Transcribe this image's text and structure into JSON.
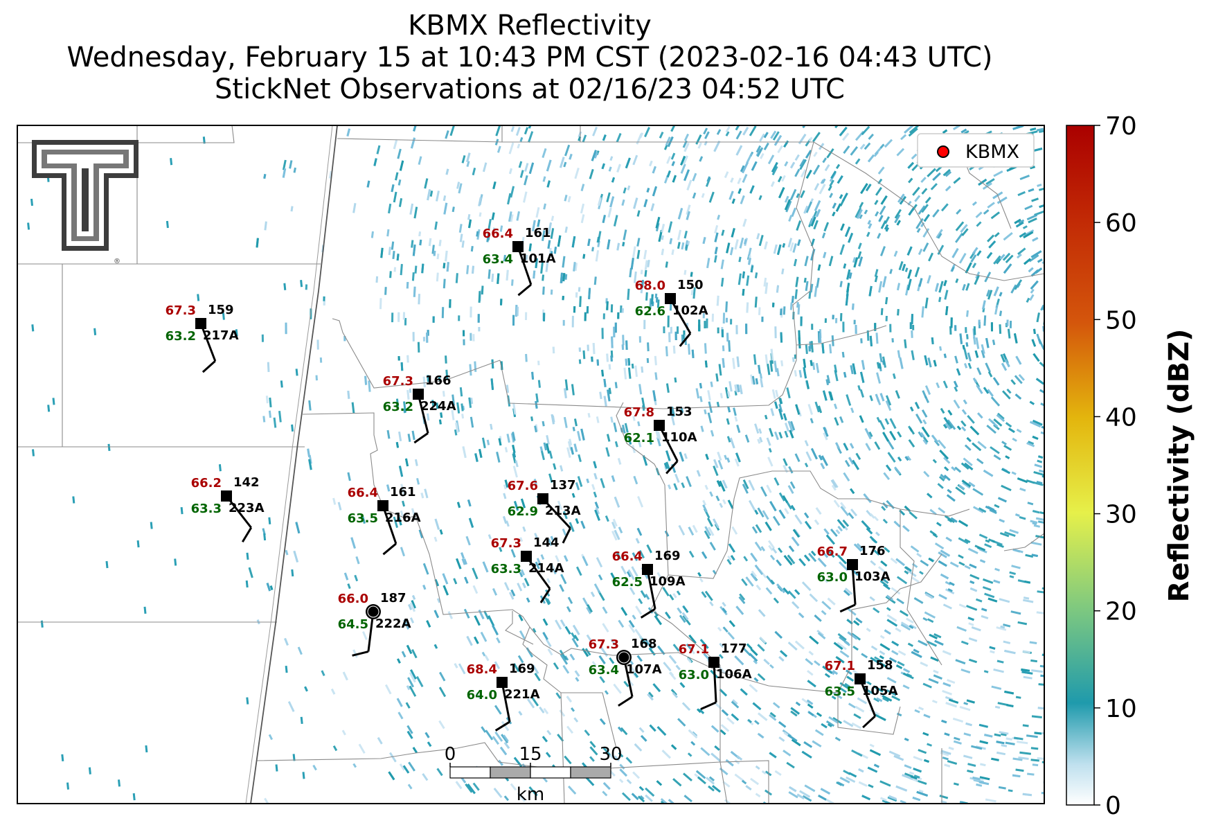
{
  "title": {
    "line1": "KBMX Reflectivity",
    "line2": "Wednesday, February 15 at 10:43 PM CST (2023-02-16 04:43 UTC)",
    "line3": "StickNet Observations at 02/16/23 04:52 UTC"
  },
  "legend": {
    "label": "KBMX",
    "marker_color": "#ff0000"
  },
  "colorbar": {
    "label": "Reflectivity (dBZ)",
    "ticks": [
      "0",
      "10",
      "20",
      "30",
      "40",
      "50",
      "60",
      "70"
    ],
    "range": [
      0,
      70
    ],
    "colors": [
      "#ffffff",
      "#1f9aac",
      "#7fc97f",
      "#e6f04a",
      "#e3b50d",
      "#d4560c",
      "#aa0000"
    ]
  },
  "scalebar": {
    "ticks": [
      "0",
      "15",
      "30"
    ],
    "unit": "km"
  },
  "logo": {
    "name": "texas-tech-double-t-logo"
  },
  "stations": [
    {
      "id": "101A",
      "temp": "66.4",
      "dew": "63.4",
      "dir": "161",
      "marker": "square"
    },
    {
      "id": "102A",
      "temp": "68.0",
      "dew": "62.6",
      "dir": "150",
      "marker": "square"
    },
    {
      "id": "217A",
      "temp": "67.3",
      "dew": "63.2",
      "dir": "159",
      "marker": "square"
    },
    {
      "id": "224A",
      "temp": "67.3",
      "dew": "63.2",
      "dir": "166",
      "marker": "square"
    },
    {
      "id": "110A",
      "temp": "67.8",
      "dew": "62.1",
      "dir": "153",
      "marker": "square"
    },
    {
      "id": "223A",
      "temp": "66.2",
      "dew": "63.3",
      "dir": "142",
      "marker": "square"
    },
    {
      "id": "216A",
      "temp": "66.4",
      "dew": "63.5",
      "dir": "161",
      "marker": "square"
    },
    {
      "id": "213A",
      "temp": "67.6",
      "dew": "62.9",
      "dir": "137",
      "marker": "square"
    },
    {
      "id": "214A",
      "temp": "67.3",
      "dew": "63.3",
      "dir": "144",
      "marker": "square"
    },
    {
      "id": "109A",
      "temp": "66.4",
      "dew": "62.5",
      "dir": "169",
      "marker": "square"
    },
    {
      "id": "103A",
      "temp": "66.7",
      "dew": "63.0",
      "dir": "176",
      "marker": "square"
    },
    {
      "id": "222A",
      "temp": "66.0",
      "dew": "64.5",
      "dir": "187",
      "marker": "circle"
    },
    {
      "id": "107A",
      "temp": "67.3",
      "dew": "63.4",
      "dir": "168",
      "marker": "circle"
    },
    {
      "id": "106A",
      "temp": "67.1",
      "dew": "63.0",
      "dir": "177",
      "marker": "square"
    },
    {
      "id": "221A",
      "temp": "68.4",
      "dew": "64.0",
      "dir": "169",
      "marker": "square"
    },
    {
      "id": "105A",
      "temp": "67.1",
      "dew": "63.5",
      "dir": "158",
      "marker": "square"
    }
  ]
}
